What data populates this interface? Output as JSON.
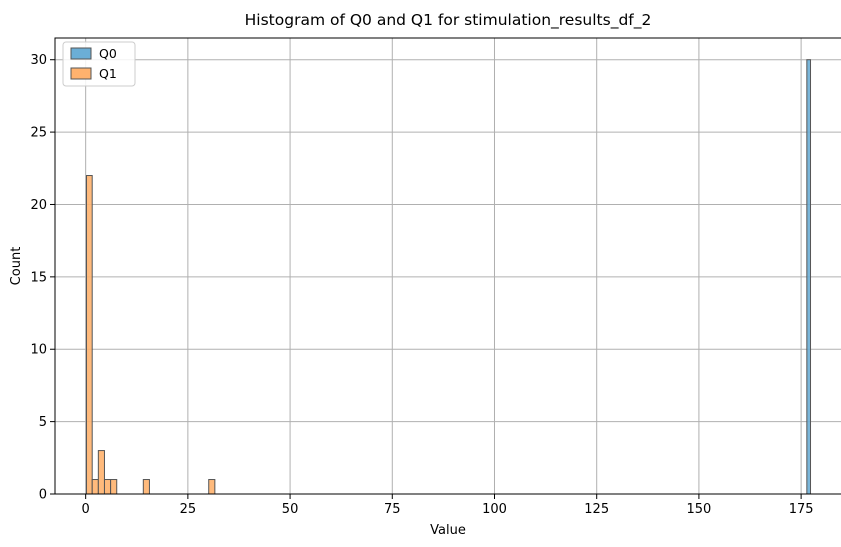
{
  "chart_data": {
    "type": "bar",
    "title": "Histogram of Q0 and Q1 for stimulation_results_df_2",
    "xlabel": "Value",
    "ylabel": "Count",
    "xlim": [
      -7.5,
      185
    ],
    "ylim": [
      0,
      31.5
    ],
    "xticks": [
      0,
      25,
      50,
      75,
      100,
      125,
      150,
      175
    ],
    "yticks": [
      0,
      5,
      10,
      15,
      20,
      25,
      30
    ],
    "grid": true,
    "legend_position": "top-left",
    "series": [
      {
        "name": "Q0",
        "color": "#6baed6",
        "bins": [
          {
            "x0": 176.4,
            "x1": 177.3,
            "count": 30
          }
        ]
      },
      {
        "name": "Q1",
        "color": "#ffb26e",
        "bins": [
          {
            "x0": 0.2,
            "x1": 1.6,
            "count": 22
          },
          {
            "x0": 1.6,
            "x1": 3.1,
            "count": 1
          },
          {
            "x0": 3.1,
            "x1": 4.6,
            "count": 3
          },
          {
            "x0": 4.6,
            "x1": 6.1,
            "count": 1
          },
          {
            "x0": 6.1,
            "x1": 7.6,
            "count": 1
          },
          {
            "x0": 14.1,
            "x1": 15.6,
            "count": 1
          },
          {
            "x0": 30.1,
            "x1": 31.6,
            "count": 1
          }
        ]
      }
    ]
  }
}
